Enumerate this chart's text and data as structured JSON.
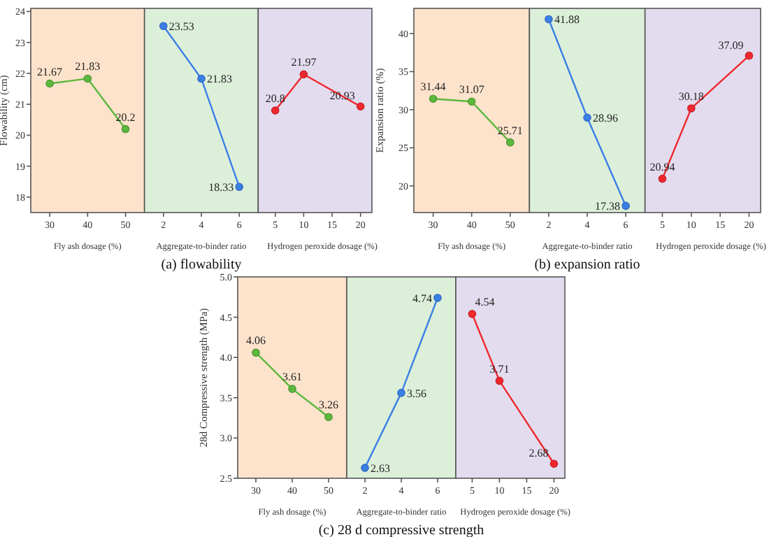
{
  "chart_data": [
    {
      "type": "line",
      "ylabel": "Flowability (cm)",
      "xlabel": "Fly ash dosage (%)",
      "x": [
        30,
        40,
        50
      ],
      "xlim": [
        25,
        55
      ],
      "xticks": [
        30,
        40,
        50
      ],
      "ylim": [
        17.5,
        24.1
      ],
      "yticks": [
        18,
        19,
        20,
        21,
        22,
        23,
        24
      ],
      "marker": "circle",
      "data_labels": true,
      "bands": [
        {
          "axis": "x",
          "from": 25,
          "to": 55,
          "color": "#fde3cc"
        }
      ],
      "series": [
        {
          "color": "#5cb83c",
          "values": [
            21.67,
            21.83,
            20.2
          ]
        }
      ]
    },
    {
      "type": "line",
      "title": "(a) flowability",
      "xlabel": "Aggregate-to-binder ratio",
      "x": [
        2,
        4,
        6
      ],
      "xlim": [
        1,
        7
      ],
      "xticks": [
        2,
        4,
        6
      ],
      "ylim": [
        17.5,
        24.1
      ],
      "tick_labels": "x",
      "marker": "circle",
      "data_labels": true,
      "bands": [
        {
          "axis": "x",
          "from": 1,
          "to": 7,
          "color": "#dcefd9"
        }
      ],
      "series": [
        {
          "color": "#3a7fe6",
          "values": [
            23.53,
            21.83,
            18.33
          ]
        }
      ]
    },
    {
      "type": "line",
      "xlabel": "Hydrogen peroxide dosage (%)",
      "x": [
        5,
        10,
        20
      ],
      "xlim": [
        2,
        22
      ],
      "xticks": [
        5,
        10,
        15,
        20
      ],
      "ylim": [
        17.5,
        24.1
      ],
      "tick_labels": "x",
      "marker": "circle",
      "data_labels": true,
      "bands": [
        {
          "axis": "x",
          "from": 2,
          "to": 22,
          "color": "#e3dcee"
        }
      ],
      "series": [
        {
          "color": "#f0282e",
          "values": [
            20.8,
            21.97,
            20.93
          ]
        }
      ]
    },
    {
      "type": "line",
      "ylabel": "Expansion ratio (%)",
      "xlabel": "Fly ash dosage (%)",
      "x": [
        30,
        40,
        50
      ],
      "xlim": [
        25,
        55
      ],
      "xticks": [
        30,
        40,
        50
      ],
      "ylim": [
        16.5,
        43.3
      ],
      "yticks": [
        20,
        25,
        30,
        35,
        40
      ],
      "marker": "circle",
      "data_labels": true,
      "bands": [
        {
          "axis": "x",
          "from": 25,
          "to": 55,
          "color": "#fde3cc"
        }
      ],
      "series": [
        {
          "color": "#5cb83c",
          "values": [
            31.44,
            31.07,
            25.71
          ]
        }
      ]
    },
    {
      "type": "line",
      "title": "(b) expansion ratio",
      "xlabel": "Aggregate-to-binder ratio",
      "x": [
        2,
        4,
        6
      ],
      "xlim": [
        1,
        7
      ],
      "xticks": [
        2,
        4,
        6
      ],
      "ylim": [
        16.5,
        43.3
      ],
      "tick_labels": "x",
      "marker": "circle",
      "data_labels": true,
      "bands": [
        {
          "axis": "x",
          "from": 1,
          "to": 7,
          "color": "#dcefd9"
        }
      ],
      "series": [
        {
          "color": "#3a7fe6",
          "values": [
            41.88,
            28.96,
            17.38
          ]
        }
      ]
    },
    {
      "type": "line",
      "xlabel": "Hydrogen peroxide dosage (%)",
      "x": [
        5,
        10,
        20
      ],
      "xlim": [
        2,
        22
      ],
      "xticks": [
        5,
        10,
        15,
        20
      ],
      "ylim": [
        16.5,
        43.3
      ],
      "tick_labels": "x",
      "marker": "circle",
      "data_labels": true,
      "bands": [
        {
          "axis": "x",
          "from": 2,
          "to": 22,
          "color": "#e3dcee"
        }
      ],
      "series": [
        {
          "color": "#f0282e",
          "values": [
            20.94,
            30.18,
            37.09
          ]
        }
      ]
    },
    {
      "type": "line",
      "ylabel": "28d Compressive strength (MPa)",
      "xlabel": "Fly ash dosage (%)",
      "x": [
        30,
        40,
        50
      ],
      "xlim": [
        25,
        55
      ],
      "xticks": [
        30,
        40,
        50
      ],
      "ylim": [
        2.5,
        5.0
      ],
      "yticks": [
        {
          "value": 2.5,
          "label": "2.5"
        },
        {
          "value": 3,
          "label": "3.0"
        },
        {
          "value": 3.5,
          "label": "3.5"
        },
        {
          "value": 4,
          "label": "4.0"
        },
        {
          "value": 4.5,
          "label": "4.5"
        },
        {
          "value": 5,
          "label": "5.0"
        }
      ],
      "marker": "circle",
      "data_labels": true,
      "bands": [
        {
          "axis": "x",
          "from": 25,
          "to": 55,
          "color": "#fde3cc"
        }
      ],
      "series": [
        {
          "color": "#5cb83c",
          "values": [
            4.06,
            3.61,
            3.26
          ]
        }
      ]
    },
    {
      "type": "line",
      "title": "(c) 28 d compressive strength",
      "xlabel": "Aggregate-to-binder ratio",
      "x": [
        2,
        4,
        6
      ],
      "xlim": [
        1,
        7
      ],
      "xticks": [
        2,
        4,
        6
      ],
      "ylim": [
        2.5,
        5.0
      ],
      "tick_labels": "x",
      "marker": "circle",
      "data_labels": true,
      "bands": [
        {
          "axis": "x",
          "from": 1,
          "to": 7,
          "color": "#dcefd9"
        }
      ],
      "series": [
        {
          "color": "#3a7fe6",
          "values": [
            2.63,
            3.56,
            4.74
          ]
        }
      ]
    },
    {
      "type": "line",
      "xlabel": "Hydrogen peroxide dosage (%)",
      "x": [
        5,
        10,
        20
      ],
      "xlim": [
        2,
        22
      ],
      "xticks": [
        5,
        10,
        15,
        20
      ],
      "ylim": [
        2.5,
        5.0
      ],
      "tick_labels": "x",
      "marker": "circle",
      "data_labels": true,
      "bands": [
        {
          "axis": "x",
          "from": 2,
          "to": 22,
          "color": "#e3dcee"
        }
      ],
      "series": [
        {
          "color": "#f0282e",
          "values": [
            4.54,
            3.71,
            2.68
          ]
        }
      ]
    }
  ]
}
